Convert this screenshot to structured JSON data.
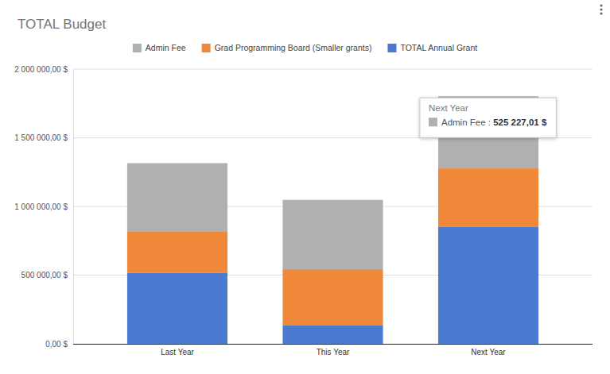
{
  "chart_data": {
    "type": "bar",
    "title": "TOTAL Budget",
    "categories": [
      "Last Year",
      "This Year",
      "Next Year"
    ],
    "series": [
      {
        "name": "TOTAL Annual Grant",
        "color": "#4a7bd0",
        "values": [
          515000,
          133000,
          850000
        ]
      },
      {
        "name": "Grad Programming Board (Smaller grants)",
        "color": "#f0883a",
        "values": [
          300000,
          410000,
          427000
        ]
      },
      {
        "name": "Admin Fee",
        "color": "#b0b0b0",
        "values": [
          500000,
          505000,
          525227.01
        ]
      }
    ],
    "stacked": true,
    "ylim": [
      0,
      2000000
    ],
    "yticks": [
      {
        "value": 0,
        "label": "0,00 $"
      },
      {
        "value": 500000,
        "label": "500 000,00 $"
      },
      {
        "value": 1000000,
        "label": "1 000 000,00 $"
      },
      {
        "value": 1500000,
        "label": "1 500 000,00 $"
      },
      {
        "value": 2000000,
        "label": "2 000 000,00 $"
      }
    ],
    "grid": true,
    "legend": "top",
    "annotations": [
      "Next Year",
      "Admin Fee : 525 227,01 $"
    ]
  }
}
